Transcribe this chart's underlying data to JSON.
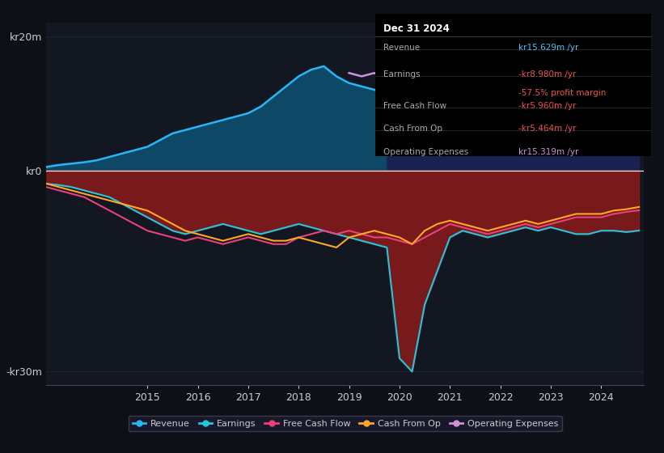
{
  "title": "Dec 31 2024",
  "bg_color": "#0d1117",
  "plot_bg_color": "#131722",
  "years": [
    2013.0,
    2013.25,
    2013.5,
    2013.75,
    2014.0,
    2014.25,
    2014.5,
    2014.75,
    2015.0,
    2015.25,
    2015.5,
    2015.75,
    2016.0,
    2016.25,
    2016.5,
    2016.75,
    2017.0,
    2017.25,
    2017.5,
    2017.75,
    2018.0,
    2018.25,
    2018.5,
    2018.75,
    2019.0,
    2019.25,
    2019.5,
    2019.75,
    2020.0,
    2020.25,
    2020.5,
    2020.75,
    2021.0,
    2021.25,
    2021.5,
    2021.75,
    2022.0,
    2022.25,
    2022.5,
    2022.75,
    2023.0,
    2023.25,
    2023.5,
    2023.75,
    2024.0,
    2024.25,
    2024.5,
    2024.75
  ],
  "revenue": [
    0.5,
    0.8,
    1.0,
    1.2,
    1.5,
    2.0,
    2.5,
    3.0,
    3.5,
    4.5,
    5.5,
    6.0,
    6.5,
    7.0,
    7.5,
    8.0,
    8.5,
    9.5,
    11.0,
    12.5,
    14.0,
    15.0,
    15.5,
    14.0,
    13.0,
    12.5,
    12.0,
    11.5,
    11.0,
    12.0,
    13.0,
    14.0,
    15.0,
    15.5,
    16.0,
    16.5,
    16.0,
    15.5,
    16.0,
    16.5,
    17.0,
    16.5,
    16.0,
    16.0,
    16.0,
    16.0,
    15.8,
    15.629
  ],
  "earnings": [
    -2.0,
    -2.2,
    -2.5,
    -3.0,
    -3.5,
    -4.0,
    -5.0,
    -6.0,
    -7.0,
    -8.0,
    -9.0,
    -9.5,
    -9.0,
    -8.5,
    -8.0,
    -8.5,
    -9.0,
    -9.5,
    -9.0,
    -8.5,
    -8.0,
    -8.5,
    -9.0,
    -9.5,
    -10.0,
    -10.5,
    -11.0,
    -11.5,
    -28.0,
    -30.0,
    -20.0,
    -15.0,
    -10.0,
    -9.0,
    -9.5,
    -10.0,
    -9.5,
    -9.0,
    -8.5,
    -9.0,
    -8.5,
    -9.0,
    -9.5,
    -9.5,
    -9.0,
    -9.0,
    -9.2,
    -8.98
  ],
  "free_cash_flow": [
    -2.5,
    -3.0,
    -3.5,
    -4.0,
    -5.0,
    -6.0,
    -7.0,
    -8.0,
    -9.0,
    -9.5,
    -10.0,
    -10.5,
    -10.0,
    -10.5,
    -11.0,
    -10.5,
    -10.0,
    -10.5,
    -11.0,
    -11.0,
    -10.0,
    -9.5,
    -9.0,
    -9.5,
    -9.0,
    -9.5,
    -10.0,
    -10.0,
    -10.5,
    -11.0,
    -10.0,
    -9.0,
    -8.0,
    -8.5,
    -9.0,
    -9.5,
    -9.0,
    -8.5,
    -8.0,
    -8.5,
    -8.0,
    -7.5,
    -7.0,
    -7.0,
    -7.0,
    -6.5,
    -6.2,
    -5.96
  ],
  "cash_from_op": [
    -2.0,
    -2.5,
    -3.0,
    -3.5,
    -4.0,
    -4.5,
    -5.0,
    -5.5,
    -6.0,
    -7.0,
    -8.0,
    -9.0,
    -9.5,
    -10.0,
    -10.5,
    -10.0,
    -9.5,
    -10.0,
    -10.5,
    -10.5,
    -10.0,
    -10.5,
    -11.0,
    -11.5,
    -10.0,
    -9.5,
    -9.0,
    -9.5,
    -10.0,
    -11.0,
    -9.0,
    -8.0,
    -7.5,
    -8.0,
    -8.5,
    -9.0,
    -8.5,
    -8.0,
    -7.5,
    -8.0,
    -7.5,
    -7.0,
    -6.5,
    -6.5,
    -6.5,
    -6.0,
    -5.8,
    -5.464
  ],
  "operating_expenses": [
    null,
    null,
    null,
    null,
    null,
    null,
    null,
    null,
    null,
    null,
    null,
    null,
    null,
    null,
    null,
    null,
    null,
    null,
    null,
    null,
    null,
    null,
    null,
    null,
    14.5,
    14.0,
    14.5,
    13.5,
    13.0,
    14.0,
    15.0,
    16.0,
    17.0,
    17.5,
    18.0,
    17.0,
    16.0,
    15.5,
    16.5,
    17.0,
    16.5,
    16.0,
    15.5,
    15.0,
    15.0,
    15.2,
    15.3,
    15.319
  ],
  "highlight_start": 2019.75,
  "ylim": [
    -32,
    22
  ],
  "yticks": [
    -30,
    0,
    20
  ],
  "ytick_labels": [
    "-kr30m",
    "kr0",
    "kr20m"
  ],
  "xticks": [
    2015,
    2016,
    2017,
    2018,
    2019,
    2020,
    2021,
    2022,
    2023,
    2024
  ],
  "revenue_color": "#29b6f6",
  "earnings_color": "#26c6da",
  "fcf_color": "#ec407a",
  "cashop_color": "#ffa726",
  "opex_color": "#ce93d8",
  "revenue_fill_color": "#0d4f6e",
  "negative_fill_color": "#8b1a1a",
  "highlight_revenue_fill_color": "#1a2456",
  "opex_fill_color": "#3a1560",
  "legend_items": [
    {
      "label": "Revenue",
      "color": "#29b6f6"
    },
    {
      "label": "Earnings",
      "color": "#26c6da"
    },
    {
      "label": "Free Cash Flow",
      "color": "#ec407a"
    },
    {
      "label": "Cash From Op",
      "color": "#ffa726"
    },
    {
      "label": "Operating Expenses",
      "color": "#ce93d8"
    }
  ],
  "infobox": {
    "title": "Dec 31 2024",
    "rows": [
      {
        "label": "Revenue",
        "value": "kr15.629m /yr",
        "value_color": "#4fc3f7",
        "sub": null
      },
      {
        "label": "Earnings",
        "value": "-kr8.980m /yr",
        "value_color": "#ef5350",
        "sub": "-57.5% profit margin"
      },
      {
        "label": "Free Cash Flow",
        "value": "-kr5.960m /yr",
        "value_color": "#ef5350",
        "sub": null
      },
      {
        "label": "Cash From Op",
        "value": "-kr5.464m /yr",
        "value_color": "#ef5350",
        "sub": null
      },
      {
        "label": "Operating Expenses",
        "value": "kr15.319m /yr",
        "value_color": "#ce93d8",
        "sub": null
      }
    ]
  }
}
